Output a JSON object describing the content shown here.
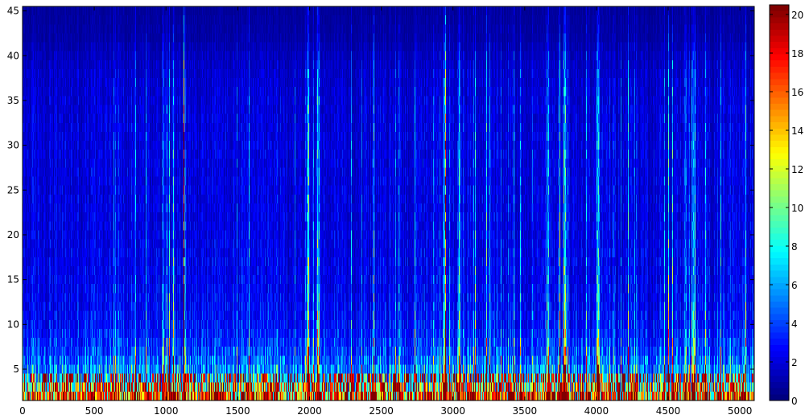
{
  "chart_data": {
    "type": "heatmap",
    "title": "",
    "xlabel": "",
    "ylabel": "",
    "xlim": [
      0,
      5100
    ],
    "ylim": [
      1.5,
      45.5
    ],
    "x_ticks": [
      0,
      500,
      1000,
      1500,
      2000,
      2500,
      3000,
      3500,
      4000,
      4500,
      5000
    ],
    "y_ticks": [
      5,
      10,
      15,
      20,
      25,
      30,
      35,
      40,
      45
    ],
    "n_rows": 44,
    "n_columns": 5100,
    "colormap": "jet",
    "colorbar": {
      "limits": [
        0,
        20.5
      ],
      "ticks": [
        0,
        2,
        4,
        6,
        8,
        10,
        12,
        14,
        16,
        18,
        20
      ]
    },
    "row_profile": {
      "description_rows": [
        2,
        3,
        4,
        5,
        6,
        7,
        8,
        9,
        10,
        12,
        15,
        20,
        25,
        30,
        35,
        38,
        40,
        42,
        45
      ],
      "typical_values": [
        14,
        10,
        7,
        5.5,
        4.5,
        3.8,
        3.4,
        3.0,
        2.7,
        2.4,
        2.2,
        2.0,
        1.9,
        1.9,
        1.7,
        1.5,
        1.2,
        0.8,
        0.6
      ]
    },
    "high_energy_columns_x": [
      980,
      1130,
      1990,
      2060,
      2940,
      3040,
      3660,
      3780,
      4010,
      4620,
      4680
    ]
  }
}
